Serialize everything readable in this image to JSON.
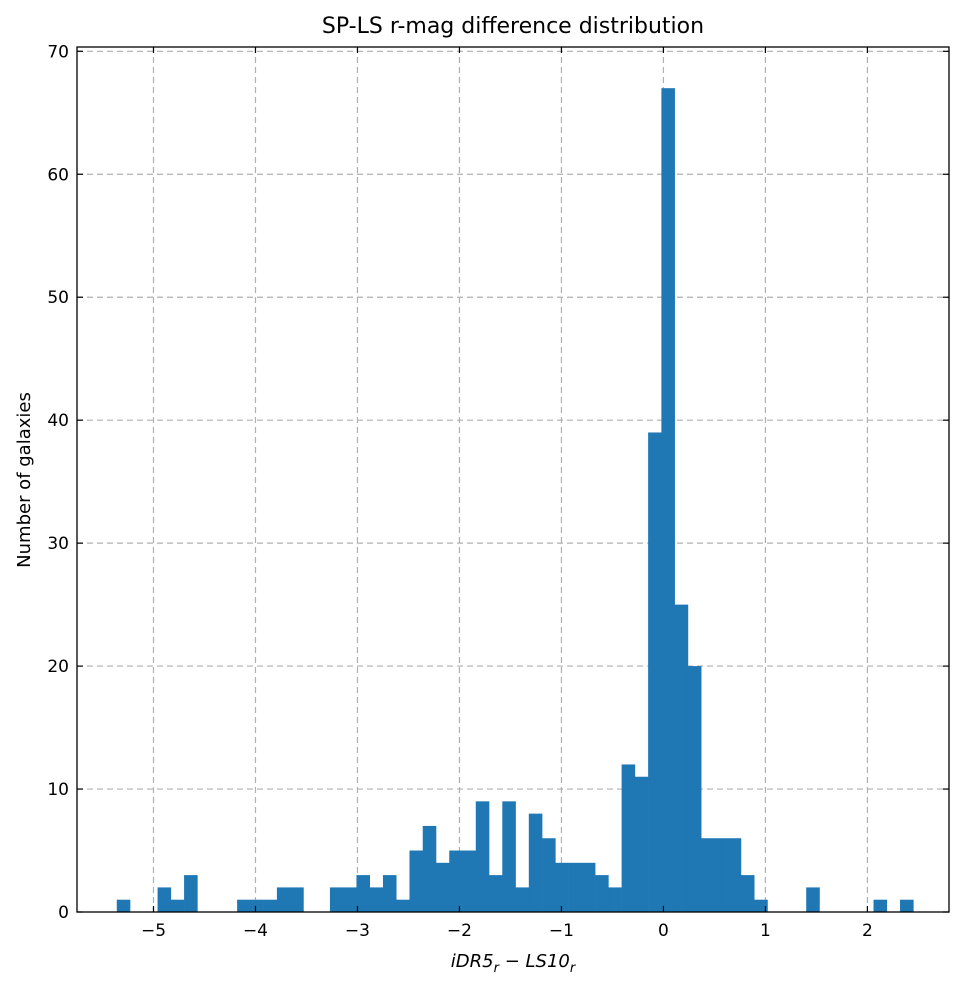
{
  "chart_data": {
    "type": "bar",
    "title": "SP-LS r-mag difference distribution",
    "xlabel_parts": [
      "iDR5",
      "r",
      " − ",
      "LS10",
      "r"
    ],
    "ylabel": "Number of galaxies",
    "xlim": [
      -5.75,
      2.8
    ],
    "ylim": [
      0,
      70.35
    ],
    "xticks": [
      -5,
      -4,
      -3,
      -2,
      -1,
      0,
      1,
      2
    ],
    "xtick_labels": [
      "−5",
      "−4",
      "−3",
      "−2",
      "−1",
      "0",
      "1",
      "2"
    ],
    "yticks": [
      0,
      10,
      20,
      30,
      40,
      50,
      60,
      70
    ],
    "ytick_labels": [
      "0",
      "10",
      "20",
      "30",
      "40",
      "50",
      "60",
      "70"
    ],
    "grid": true,
    "bins": [
      {
        "x0": -5.36,
        "x1": -5.23,
        "count": 1
      },
      {
        "x0": -4.96,
        "x1": -4.83,
        "count": 2
      },
      {
        "x0": -4.83,
        "x1": -4.7,
        "count": 1
      },
      {
        "x0": -4.7,
        "x1": -4.57,
        "count": 3
      },
      {
        "x0": -4.18,
        "x1": -4.05,
        "count": 1
      },
      {
        "x0": -4.05,
        "x1": -3.92,
        "count": 1
      },
      {
        "x0": -3.92,
        "x1": -3.79,
        "count": 1
      },
      {
        "x0": -3.79,
        "x1": -3.66,
        "count": 2
      },
      {
        "x0": -3.66,
        "x1": -3.53,
        "count": 2
      },
      {
        "x0": -3.27,
        "x1": -3.14,
        "count": 2
      },
      {
        "x0": -3.14,
        "x1": -3.01,
        "count": 2
      },
      {
        "x0": -3.01,
        "x1": -2.88,
        "count": 3
      },
      {
        "x0": -2.88,
        "x1": -2.75,
        "count": 2
      },
      {
        "x0": -2.75,
        "x1": -2.62,
        "count": 3
      },
      {
        "x0": -2.62,
        "x1": -2.49,
        "count": 1
      },
      {
        "x0": -2.49,
        "x1": -2.36,
        "count": 5
      },
      {
        "x0": -2.36,
        "x1": -2.23,
        "count": 7
      },
      {
        "x0": -2.23,
        "x1": -2.1,
        "count": 4
      },
      {
        "x0": -2.1,
        "x1": -1.97,
        "count": 5
      },
      {
        "x0": -1.97,
        "x1": -1.84,
        "count": 5
      },
      {
        "x0": -1.84,
        "x1": -1.71,
        "count": 9
      },
      {
        "x0": -1.71,
        "x1": -1.58,
        "count": 3
      },
      {
        "x0": -1.58,
        "x1": -1.45,
        "count": 9
      },
      {
        "x0": -1.45,
        "x1": -1.32,
        "count": 2
      },
      {
        "x0": -1.32,
        "x1": -1.19,
        "count": 8
      },
      {
        "x0": -1.19,
        "x1": -1.06,
        "count": 6
      },
      {
        "x0": -1.06,
        "x1": -0.93,
        "count": 4
      },
      {
        "x0": -0.93,
        "x1": -0.8,
        "count": 4
      },
      {
        "x0": -0.8,
        "x1": -0.67,
        "count": 4
      },
      {
        "x0": -0.67,
        "x1": -0.54,
        "count": 3
      },
      {
        "x0": -0.54,
        "x1": -0.41,
        "count": 2
      },
      {
        "x0": -0.41,
        "x1": -0.28,
        "count": 12
      },
      {
        "x0": -0.28,
        "x1": -0.15,
        "count": 11
      },
      {
        "x0": -0.15,
        "x1": -0.02,
        "count": 39
      },
      {
        "x0": -0.02,
        "x1": 0.11,
        "count": 67
      },
      {
        "x0": 0.11,
        "x1": 0.24,
        "count": 25
      },
      {
        "x0": 0.24,
        "x1": 0.37,
        "count": 20
      },
      {
        "x0": 0.37,
        "x1": 0.5,
        "count": 6
      },
      {
        "x0": 0.5,
        "x1": 0.63,
        "count": 6
      },
      {
        "x0": 0.63,
        "x1": 0.76,
        "count": 6
      },
      {
        "x0": 0.76,
        "x1": 0.89,
        "count": 3
      },
      {
        "x0": 0.89,
        "x1": 1.02,
        "count": 1
      },
      {
        "x0": 1.4,
        "x1": 1.53,
        "count": 2
      },
      {
        "x0": 2.06,
        "x1": 2.19,
        "count": 1
      },
      {
        "x0": 2.32,
        "x1": 2.45,
        "count": 1
      }
    ]
  }
}
